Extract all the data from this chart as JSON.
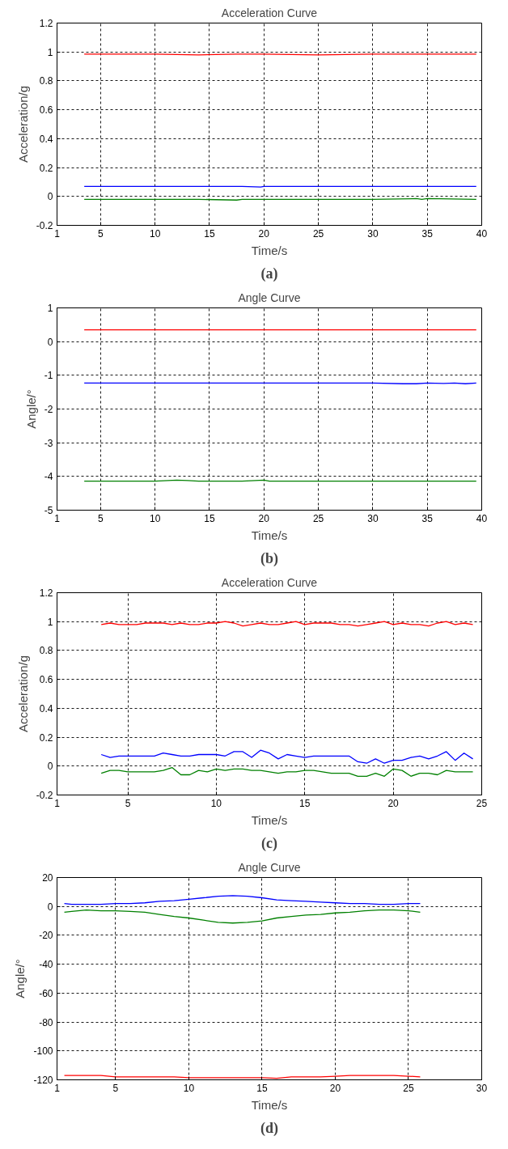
{
  "chart_data": [
    {
      "type": "line",
      "title": "Acceleration Curve",
      "xlabel": "Time/s",
      "ylabel": "Acceleration/g",
      "annotations": [
        "(a)"
      ],
      "grid": true,
      "xlim": [
        1,
        40
      ],
      "xticks": [
        1,
        5,
        10,
        15,
        20,
        25,
        30,
        35,
        40
      ],
      "ylim": [
        -0.2,
        1.2
      ],
      "yticks": [
        -0.2,
        0,
        0.2,
        0.4,
        0.6,
        0.8,
        1,
        1.2
      ],
      "x": [
        3.5,
        5,
        10,
        14,
        17.5,
        18,
        19.7,
        20,
        25,
        30,
        34,
        34.5,
        35,
        39.5
      ],
      "series": [
        {
          "color": "#ff0000",
          "values": [
            0.985,
            0.985,
            0.985,
            0.98,
            0.985,
            0.985,
            0.985,
            0.985,
            0.98,
            0.985,
            0.985,
            0.985,
            0.985,
            0.985
          ]
        },
        {
          "color": "#0000ff",
          "values": [
            0.07,
            0.07,
            0.07,
            0.07,
            0.07,
            0.07,
            0.065,
            0.07,
            0.07,
            0.07,
            0.07,
            0.07,
            0.07,
            0.07
          ]
        },
        {
          "color": "#008000",
          "values": [
            -0.02,
            -0.02,
            -0.02,
            -0.02,
            -0.025,
            -0.02,
            -0.02,
            -0.02,
            -0.02,
            -0.02,
            -0.015,
            -0.02,
            -0.015,
            -0.02
          ]
        }
      ]
    },
    {
      "type": "line",
      "title": "Angle Curve",
      "xlabel": "Time/s",
      "ylabel": "Angle/°",
      "annotations": [
        "(b)"
      ],
      "grid": true,
      "xlim": [
        1,
        40
      ],
      "xticks": [
        1,
        5,
        10,
        15,
        20,
        25,
        30,
        35,
        40
      ],
      "ylim": [
        -5,
        1
      ],
      "yticks": [
        -5,
        -4,
        -3,
        -2,
        -1,
        0,
        1
      ],
      "x": [
        3.5,
        10,
        12,
        13,
        14,
        18,
        20,
        20.5,
        25,
        30,
        32.8,
        34,
        35,
        36.5,
        37.5,
        38.5,
        39.5
      ],
      "series": [
        {
          "color": "#ff0000",
          "values": [
            0.35,
            0.35,
            0.35,
            0.35,
            0.35,
            0.35,
            0.35,
            0.35,
            0.35,
            0.35,
            0.35,
            0.35,
            0.35,
            0.35,
            0.35,
            0.35,
            0.35
          ]
        },
        {
          "color": "#0000ff",
          "values": [
            -1.23,
            -1.23,
            -1.23,
            -1.23,
            -1.23,
            -1.23,
            -1.23,
            -1.23,
            -1.23,
            -1.23,
            -1.25,
            -1.25,
            -1.23,
            -1.24,
            -1.23,
            -1.25,
            -1.23
          ]
        },
        {
          "color": "#008000",
          "values": [
            -4.14,
            -4.14,
            -4.11,
            -4.12,
            -4.14,
            -4.14,
            -4.11,
            -4.14,
            -4.14,
            -4.14,
            -4.14,
            -4.14,
            -4.14,
            -4.14,
            -4.14,
            -4.14,
            -4.14
          ]
        }
      ]
    },
    {
      "type": "line",
      "title": "Acceleration Curve",
      "xlabel": "Time/s",
      "ylabel": "Acceleration/g",
      "annotations": [
        "(c)"
      ],
      "grid": true,
      "xlim": [
        1,
        25
      ],
      "xticks": [
        1,
        5,
        10,
        15,
        20,
        25
      ],
      "ylim": [
        -0.2,
        1.2
      ],
      "yticks": [
        -0.2,
        0,
        0.2,
        0.4,
        0.6,
        0.8,
        1,
        1.2
      ],
      "x": [
        3.5,
        4,
        4.5,
        5,
        5.5,
        6,
        6.5,
        7,
        7.5,
        8,
        8.5,
        9,
        9.5,
        10,
        10.5,
        11,
        11.5,
        12,
        12.5,
        13,
        13.5,
        14,
        14.5,
        15,
        15.5,
        16,
        16.5,
        17,
        17.5,
        18,
        18.5,
        19,
        19.5,
        20,
        20.5,
        21,
        21.5,
        22,
        22.5,
        23,
        23.5,
        24,
        24.5
      ],
      "series": [
        {
          "color": "#ff0000",
          "values": [
            0.98,
            0.99,
            0.98,
            0.98,
            0.98,
            0.99,
            0.99,
            0.99,
            0.98,
            0.99,
            0.98,
            0.98,
            0.99,
            0.99,
            1.0,
            0.99,
            0.97,
            0.98,
            0.99,
            0.98,
            0.98,
            0.99,
            1.0,
            0.98,
            0.99,
            0.99,
            0.99,
            0.98,
            0.98,
            0.97,
            0.98,
            0.99,
            1.0,
            0.98,
            0.99,
            0.98,
            0.98,
            0.97,
            0.99,
            1.0,
            0.98,
            0.99,
            0.98
          ]
        },
        {
          "color": "#0000ff",
          "values": [
            0.08,
            0.06,
            0.07,
            0.07,
            0.07,
            0.07,
            0.07,
            0.09,
            0.08,
            0.07,
            0.07,
            0.08,
            0.08,
            0.08,
            0.07,
            0.1,
            0.1,
            0.06,
            0.11,
            0.09,
            0.05,
            0.08,
            0.07,
            0.06,
            0.07,
            0.07,
            0.07,
            0.07,
            0.07,
            0.03,
            0.02,
            0.05,
            0.02,
            0.04,
            0.04,
            0.06,
            0.07,
            0.05,
            0.07,
            0.1,
            0.04,
            0.09,
            0.05
          ]
        },
        {
          "color": "#008000",
          "values": [
            -0.05,
            -0.03,
            -0.03,
            -0.04,
            -0.04,
            -0.04,
            -0.04,
            -0.03,
            -0.01,
            -0.06,
            -0.06,
            -0.03,
            -0.04,
            -0.02,
            -0.03,
            -0.02,
            -0.02,
            -0.03,
            -0.03,
            -0.04,
            -0.05,
            -0.04,
            -0.04,
            -0.03,
            -0.03,
            -0.04,
            -0.05,
            -0.05,
            -0.05,
            -0.07,
            -0.07,
            -0.05,
            -0.07,
            -0.02,
            -0.03,
            -0.07,
            -0.05,
            -0.05,
            -0.06,
            -0.03,
            -0.04,
            -0.04,
            -0.04
          ]
        }
      ]
    },
    {
      "type": "line",
      "title": "Angle Curve",
      "xlabel": "Time/s",
      "ylabel": "Angle/°",
      "annotations": [
        "(d)"
      ],
      "grid": true,
      "xlim": [
        1,
        30
      ],
      "xticks": [
        1,
        5,
        10,
        15,
        20,
        25,
        30
      ],
      "ylim": [
        -120,
        20
      ],
      "yticks": [
        -120,
        -100,
        -80,
        -60,
        -40,
        -20,
        0,
        20
      ],
      "x": [
        1.5,
        2,
        3,
        4,
        5,
        6,
        7,
        8,
        9,
        10,
        11,
        12,
        13,
        14,
        15,
        16,
        17,
        18,
        19,
        20,
        21,
        22,
        23,
        24,
        25,
        25.8
      ],
      "series": [
        {
          "color": "#0000ff",
          "values": [
            2,
            1.5,
            1.5,
            1.5,
            2,
            2,
            2.5,
            3.5,
            4,
            5,
            6,
            7,
            7.5,
            7,
            6,
            4.5,
            4,
            3.5,
            3,
            2.5,
            2,
            2,
            1.5,
            1.5,
            2,
            2
          ]
        },
        {
          "color": "#008000",
          "values": [
            -4,
            -3.5,
            -2.5,
            -3,
            -3,
            -3.5,
            -4,
            -5.5,
            -7,
            -8,
            -9.5,
            -11,
            -11.5,
            -11,
            -10,
            -8,
            -7,
            -6,
            -5.5,
            -4.5,
            -4,
            -3,
            -2.5,
            -2.5,
            -3,
            -4
          ]
        },
        {
          "color": "#ff0000",
          "values": [
            -117,
            -117,
            -117,
            -117,
            -118,
            -118,
            -118,
            -118,
            -118,
            -118.5,
            -118.5,
            -118.5,
            -118.5,
            -118.5,
            -118.5,
            -119,
            -118,
            -118,
            -118,
            -117.5,
            -117,
            -117,
            -117,
            -117,
            -117.5,
            -118
          ]
        }
      ]
    }
  ]
}
